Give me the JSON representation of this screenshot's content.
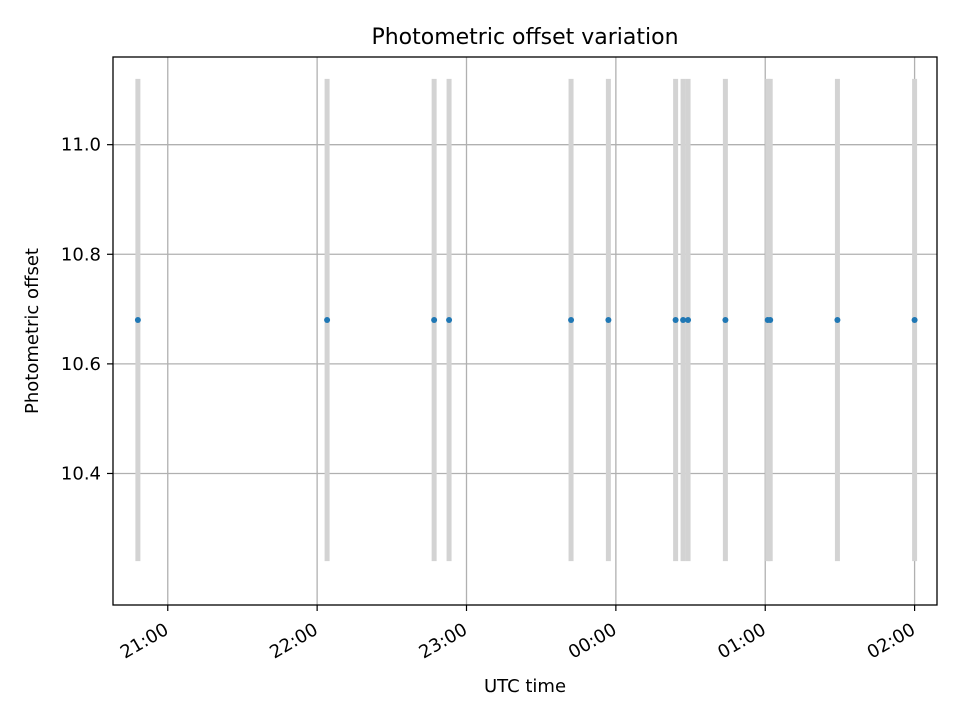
{
  "chart_data": {
    "type": "scatter",
    "title": "Photometric offset variation",
    "xlabel": "UTC time",
    "ylabel": "Photometric offset",
    "x_unit": "time (HH:MM, UTC)",
    "xlim": [
      "20:38",
      "02:09"
    ],
    "ylim": [
      10.16,
      11.16
    ],
    "grid": true,
    "x_ticks": [
      "21:00",
      "22:00",
      "23:00",
      "00:00",
      "01:00",
      "02:00"
    ],
    "y_ticks": [
      10.4,
      10.6,
      10.8,
      11.0
    ],
    "y_tick_labels": [
      "10.4",
      "10.6",
      "10.8",
      "11.0"
    ],
    "points_color": "#1f77b4",
    "bar_color": "#d3d3d3",
    "bar_range": [
      10.24,
      11.12
    ],
    "series": [
      {
        "x": [
          "20:48",
          "22:04",
          "22:47",
          "22:53",
          "23:42",
          "23:57",
          "00:24",
          "00:27",
          "00:29",
          "00:44",
          "01:01",
          "01:02",
          "01:29",
          "02:00"
        ],
        "y": [
          10.68,
          10.68,
          10.68,
          10.68,
          10.68,
          10.68,
          10.68,
          10.68,
          10.68,
          10.68,
          10.68,
          10.68,
          10.68,
          10.68
        ]
      }
    ]
  }
}
